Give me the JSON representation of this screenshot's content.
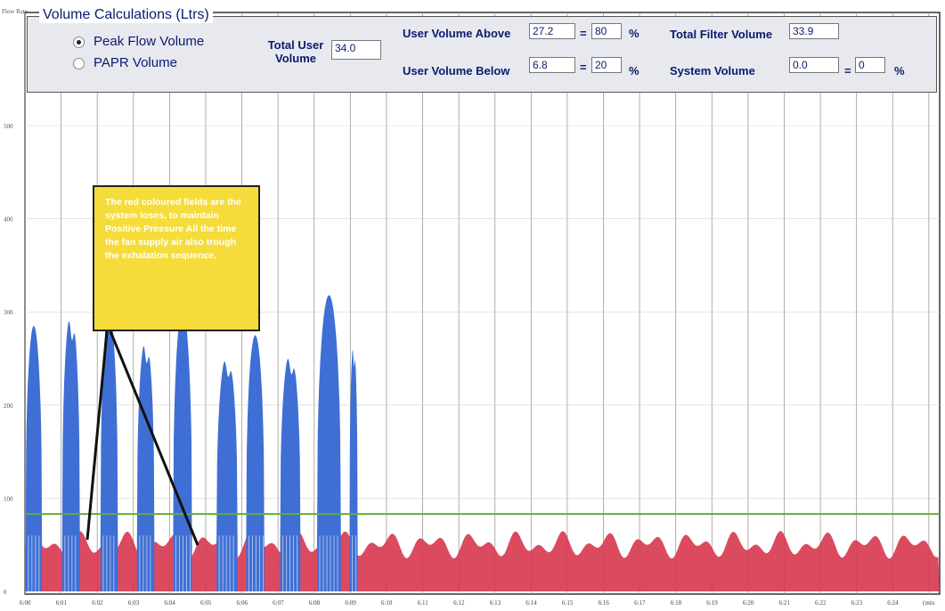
{
  "chart": {
    "y_axis_title": "Flow Rate",
    "y_ticks": [
      "500",
      "400",
      "300",
      "200",
      "100",
      "0"
    ],
    "x_ticks": [
      "6:00",
      "6:01",
      "6:02",
      "6:03",
      "6:04",
      "6:05",
      "6:06",
      "6:07",
      "6:08",
      "6:09",
      "6:10",
      "6:11",
      "6:12",
      "6:13",
      "6:14",
      "6:15",
      "6:16",
      "6:17",
      "6:18",
      "6:19",
      "6:20",
      "6:21",
      "6:22",
      "6:23",
      "6:24"
    ],
    "x_unit_label": "(min",
    "colors": {
      "flow": "#3f6fd4",
      "loss": "#d93b52",
      "threshold": "#5fae3c",
      "grid": "#9a9a9a"
    }
  },
  "chart_data": {
    "type": "area",
    "y_axis_title": "Flow Rate",
    "x_unit": "min",
    "ylim": [
      0,
      560
    ],
    "threshold": 83,
    "grid": true,
    "breaths": [
      {
        "start": 6.02,
        "end": 6.47,
        "peak": 285
      },
      {
        "start": 7.03,
        "end": 7.52,
        "peak": 300
      },
      {
        "start": 8.09,
        "end": 8.57,
        "peak": 300
      },
      {
        "start": 9.1,
        "end": 9.58,
        "peak": 272
      },
      {
        "start": 10.1,
        "end": 10.62,
        "peak": 303
      },
      {
        "start": 11.3,
        "end": 11.88,
        "peak": 255
      },
      {
        "start": 12.12,
        "end": 12.62,
        "peak": 275
      },
      {
        "start": 13.06,
        "end": 13.62,
        "peak": 258
      },
      {
        "start": 14.08,
        "end": 14.74,
        "peak": 318
      },
      {
        "start": 14.98,
        "end": 15.2,
        "peak": 268
      }
    ],
    "baseline_loss_range": [
      35,
      65
    ]
  },
  "panel": {
    "title": "Volume Calculations (Ltrs)",
    "radio_peak": "Peak Flow Volume",
    "radio_papr": "PAPR Volume",
    "total_user_label": "Total User\nVolume",
    "total_user_value": "34.0",
    "user_above_label": "User Volume Above",
    "user_above_value": "27.2",
    "user_above_pct": "80",
    "user_below_label": "User Volume Below",
    "user_below_value": "6.8",
    "user_below_pct": "20",
    "total_filter_label": "Total Filter Volume",
    "total_filter_value": "33.9",
    "system_label": "System Volume",
    "system_value": "0.0",
    "system_pct": "0",
    "eq": "=",
    "pct_sign": "%"
  },
  "annotation": {
    "text": "The red coloured fields are the system loses, to maintain Positive Pressure All the time the fan supply air also trough the exhalation sequence."
  }
}
